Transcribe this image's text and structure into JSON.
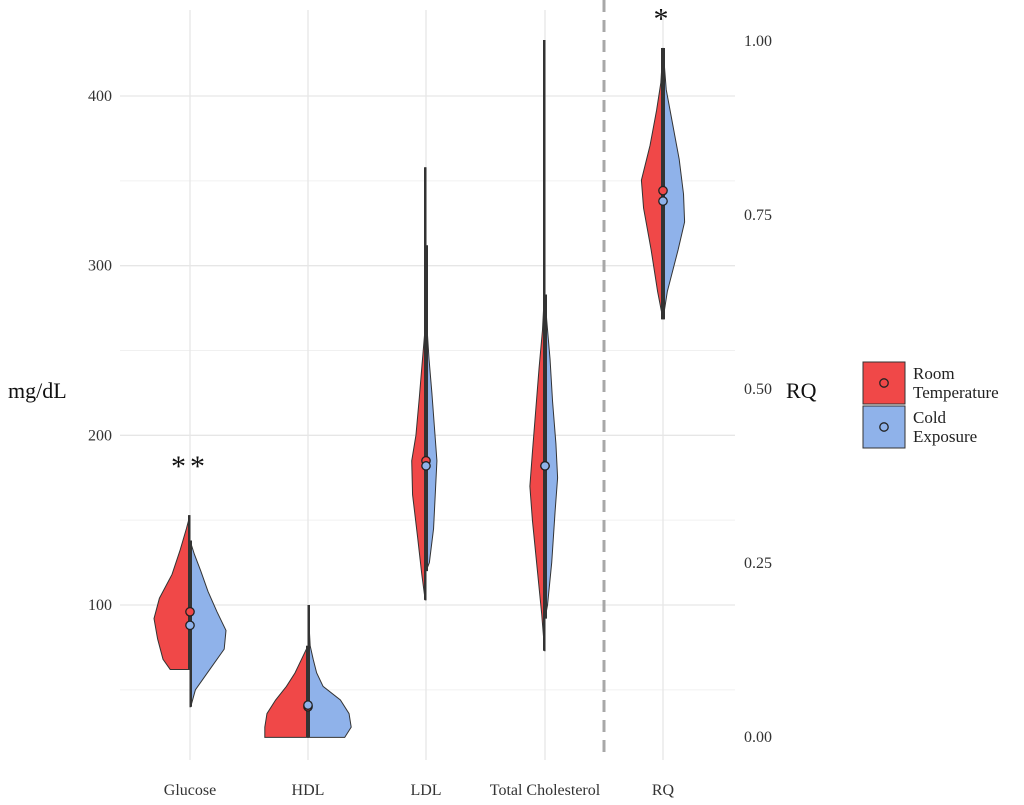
{
  "chart_data": {
    "type": "violin",
    "layout": "split-violin",
    "categories": [
      "Glucose",
      "HDL",
      "LDL",
      "Total Cholesterol",
      "RQ"
    ],
    "left_axis": {
      "label": "mg/dL",
      "ticks": [
        100,
        200,
        300,
        400
      ],
      "range": [
        10,
        445
      ]
    },
    "right_axis": {
      "label": "RQ",
      "ticks": [
        "0.00",
        "0.25",
        "0.50",
        "0.75",
        "1.00"
      ],
      "range": [
        -0.01,
        1.04
      ]
    },
    "separator_after": "Total Cholesterol",
    "grid": true,
    "legend": {
      "position": "right",
      "entries": [
        {
          "name": "Room\nTemperature",
          "color": "#f04848"
        },
        {
          "name": "Cold\nExposure",
          "color": "#8fb2ea"
        }
      ]
    },
    "series": [
      {
        "name": "Room Temperature",
        "color": "#f04848",
        "values": [
          {
            "category": "Glucose",
            "median": 96,
            "min": 62,
            "max": 153,
            "profile": [
              [
                62,
                0.55
              ],
              [
                68,
                0.75
              ],
              [
                80,
                0.9
              ],
              [
                92,
                1.0
              ],
              [
                104,
                0.85
              ],
              [
                118,
                0.5
              ],
              [
                132,
                0.28
              ],
              [
                145,
                0.1
              ],
              [
                153,
                0.0
              ]
            ]
          },
          {
            "category": "HDL",
            "median": 40,
            "min": 22,
            "max": 76,
            "profile": [
              [
                22,
                1.0
              ],
              [
                28,
                1.0
              ],
              [
                36,
                0.95
              ],
              [
                44,
                0.75
              ],
              [
                52,
                0.5
              ],
              [
                60,
                0.3
              ],
              [
                68,
                0.15
              ],
              [
                76,
                0.0
              ]
            ]
          },
          {
            "category": "LDL",
            "median": 185,
            "min": 103,
            "max": 358,
            "profile": [
              [
                103,
                0.05
              ],
              [
                118,
                0.25
              ],
              [
                140,
                0.5
              ],
              [
                165,
                0.8
              ],
              [
                185,
                0.85
              ],
              [
                200,
                0.6
              ],
              [
                222,
                0.4
              ],
              [
                240,
                0.25
              ],
              [
                260,
                0.08
              ],
              [
                290,
                0.02
              ],
              [
                358,
                0.0
              ]
            ]
          },
          {
            "category": "Total Cholesterol",
            "median": 182,
            "min": 73,
            "max": 433,
            "profile": [
              [
                73,
                0.02
              ],
              [
                95,
                0.2
              ],
              [
                120,
                0.45
              ],
              [
                150,
                0.75
              ],
              [
                170,
                0.9
              ],
              [
                190,
                0.75
              ],
              [
                215,
                0.55
              ],
              [
                240,
                0.35
              ],
              [
                262,
                0.15
              ],
              [
                285,
                0.03
              ],
              [
                433,
                0.0
              ]
            ]
          },
          {
            "category": "RQ",
            "median": 0.785,
            "min": 0.6,
            "max": 0.99,
            "profile": [
              [
                0.6,
                0.0
              ],
              [
                0.64,
                0.25
              ],
              [
                0.7,
                0.55
              ],
              [
                0.76,
                0.9
              ],
              [
                0.8,
                1.0
              ],
              [
                0.85,
                0.6
              ],
              [
                0.9,
                0.3
              ],
              [
                0.94,
                0.1
              ],
              [
                0.99,
                0.0
              ]
            ]
          }
        ]
      },
      {
        "name": "Cold Exposure",
        "color": "#8fb2ea",
        "values": [
          {
            "category": "Glucose",
            "median": 88,
            "min": 40,
            "max": 138,
            "profile": [
              [
                40,
                0.02
              ],
              [
                50,
                0.15
              ],
              [
                62,
                0.55
              ],
              [
                74,
                0.95
              ],
              [
                85,
                1.0
              ],
              [
                96,
                0.75
              ],
              [
                108,
                0.5
              ],
              [
                120,
                0.3
              ],
              [
                130,
                0.12
              ],
              [
                138,
                0.0
              ]
            ]
          },
          {
            "category": "HDL",
            "median": 41,
            "min": 22,
            "max": 100,
            "profile": [
              [
                22,
                0.85
              ],
              [
                28,
                1.0
              ],
              [
                36,
                0.95
              ],
              [
                44,
                0.75
              ],
              [
                52,
                0.35
              ],
              [
                60,
                0.2
              ],
              [
                68,
                0.12
              ],
              [
                76,
                0.05
              ],
              [
                100,
                0.0
              ]
            ]
          },
          {
            "category": "LDL",
            "median": 182,
            "min": 120,
            "max": 312,
            "profile": [
              [
                120,
                0.0
              ],
              [
                125,
                0.2
              ],
              [
                145,
                0.45
              ],
              [
                165,
                0.55
              ],
              [
                185,
                0.65
              ],
              [
                205,
                0.5
              ],
              [
                225,
                0.35
              ],
              [
                245,
                0.18
              ],
              [
                265,
                0.05
              ],
              [
                312,
                0.0
              ]
            ]
          },
          {
            "category": "Total Cholesterol",
            "median": 182,
            "min": 92,
            "max": 283,
            "profile": [
              [
                92,
                0.0
              ],
              [
                100,
                0.15
              ],
              [
                125,
                0.4
              ],
              [
                155,
                0.6
              ],
              [
                175,
                0.75
              ],
              [
                195,
                0.65
              ],
              [
                220,
                0.45
              ],
              [
                245,
                0.3
              ],
              [
                268,
                0.1
              ],
              [
                283,
                0.0
              ]
            ]
          },
          {
            "category": "RQ",
            "median": 0.77,
            "min": 0.6,
            "max": 0.99,
            "profile": [
              [
                0.6,
                0.0
              ],
              [
                0.64,
                0.2
              ],
              [
                0.7,
                0.7
              ],
              [
                0.74,
                1.0
              ],
              [
                0.78,
                0.95
              ],
              [
                0.83,
                0.75
              ],
              [
                0.88,
                0.45
              ],
              [
                0.93,
                0.15
              ],
              [
                0.99,
                0.0
              ]
            ]
          }
        ]
      }
    ],
    "annotations": [
      {
        "category": "Glucose",
        "text": "**",
        "value": 183
      },
      {
        "category": "RQ",
        "text": "*",
        "value": 1.035
      }
    ]
  }
}
